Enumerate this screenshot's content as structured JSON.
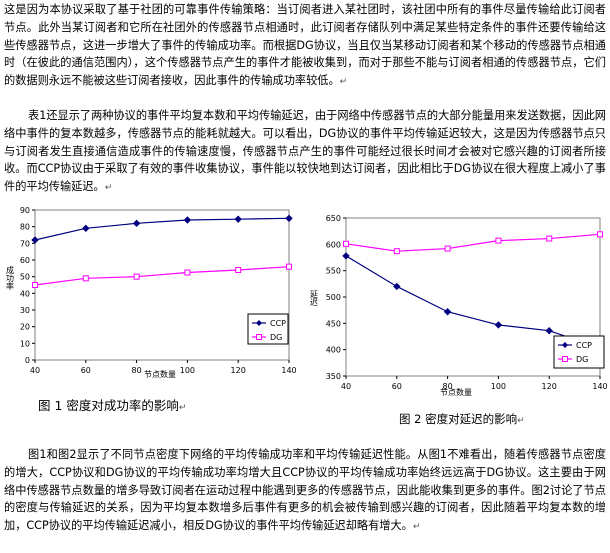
{
  "paragraphs": {
    "p1": "这是因为本协议采取了基于社团的可靠事件传输策略：当订阅者进入某社团时，该社团中所有的事件尽量传输给此订阅者节点。此外当某订阅者和它所在社团外的传感器节点相通时，此订阅者存储队列中满足某些特定条件的事件还要传输给这些传感器节点，这进一步增大了事件的传输成功率。而根据DG协议，当且仅当某移动订阅者和某个移动的传感器节点相通时（在彼此的通信范围内），这个传感器节点产生的事件才能被收集到，而对于那些不能与订阅者相通的传感器节点，它们的数据则永远不能被这些订阅者接收，因此事件的传输成功率较低。",
    "p2": "表1还显示了两种协议的事件平均复本数和平均传输延迟，由于网络中传感器节点的大部分能量用来发送数据，因此网络中事件的复本数越多，传感器节点的能耗就越大。可以看出，DG协议的事件平均传输延迟较大，这是因为传感器节点只与订阅者发生直接通信造成事件的传输速度慢，传感器节点产生的事件可能经过很长时间才会被对它感兴趣的订阅者所接收。而CCP协议由于采取了有效的事件收集协议，事件能以较快地到达订阅者，因此相比于DG协议在很大程度上减小了事件的平均传输延迟。",
    "p3": "图1和图2显示了不同节点密度下网络的平均传输成功率和平均传输延迟性能。从图1不难看出，随着传感器节点密度的增大，CCP协议和DG协议的平均传输成功率均增大且CCP协议的平均传输成功率始终远远高于DG协议。这主要由于网络中传感器节点数量的增多导致订阅者在运动过程中能遇到更多的传感器节点，因此能收集到更多的事件。图2讨论了节点的密度与传输延迟的关系，因为平均复本数增多后事件有更多的机会被传输到感兴趣的订阅者，因此随着平均复本数的增加，CCP协议的平均传输延迟减小，相反DG协议的事件平均传输延迟却略有增大。"
  },
  "paragraph_mark": "↵",
  "captions": {
    "fig1": "图 1  密度对成功率的影响",
    "fig2": "图 2 密度对延迟的影响"
  },
  "colors": {
    "ccp": "#000080",
    "dg": "#ff00ff"
  },
  "chart_data": [
    {
      "type": "line",
      "title": "",
      "xlabel": "节点数量",
      "ylabel": "成功率",
      "x": [
        40,
        60,
        80,
        100,
        120,
        140
      ],
      "xticks": [
        "40",
        "60",
        "80",
        "100",
        "120",
        "140"
      ],
      "ylim": [
        0,
        90
      ],
      "yticks": [
        0,
        10,
        20,
        30,
        40,
        50,
        60,
        70,
        80,
        90
      ],
      "grid": false,
      "legend_position": "bottom-right",
      "series": [
        {
          "name": "CCP",
          "values": [
            72,
            79,
            82,
            84,
            84.5,
            85
          ],
          "marker": "diamond"
        },
        {
          "name": "DG",
          "values": [
            45,
            49,
            50,
            52.5,
            54,
            56
          ],
          "marker": "square"
        }
      ]
    },
    {
      "type": "line",
      "title": "",
      "xlabel": "节点数量",
      "ylabel": "延迟",
      "x": [
        40,
        60,
        80,
        100,
        120,
        140
      ],
      "xticks": [
        "40",
        "60",
        "80",
        "100",
        "120",
        "140"
      ],
      "ylim": [
        350,
        650
      ],
      "yticks": [
        350,
        400,
        450,
        500,
        550,
        600,
        650
      ],
      "grid": false,
      "legend_position": "bottom-right",
      "series": [
        {
          "name": "CCP",
          "values": [
            578,
            520,
            472,
            447,
            436,
            403
          ],
          "marker": "diamond"
        },
        {
          "name": "DG",
          "values": [
            601,
            587,
            592,
            607,
            611,
            619
          ],
          "marker": "square"
        }
      ]
    }
  ]
}
